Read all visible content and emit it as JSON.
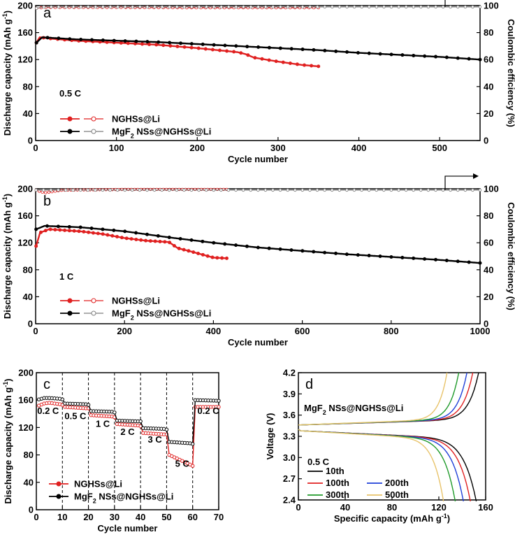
{
  "chart_data": [
    {
      "panel": "a",
      "type": "line",
      "xlabel": "Cycle number",
      "ylabel": "Discharge capacity (mAh g-1)",
      "y2label": "Coulombic efficiency (%)",
      "xlim": [
        0,
        550
      ],
      "ylim": [
        0,
        200
      ],
      "y2lim": [
        0,
        100
      ],
      "xticks": [
        0,
        100,
        200,
        300,
        400,
        500
      ],
      "yticks": [
        0,
        40,
        80,
        120,
        160,
        200
      ],
      "y2ticks": [
        0,
        20,
        40,
        60,
        80,
        100
      ],
      "rate_label": "0.5 C",
      "legend": [
        "NGHSs@Li",
        "MgF2 NSs@NGHSs@Li"
      ],
      "series": [
        {
          "name": "NGHSs@Li",
          "axis": "left",
          "color": "#e02020",
          "points": [
            [
              1,
              145
            ],
            [
              5,
              153
            ],
            [
              20,
              151
            ],
            [
              50,
              148
            ],
            [
              100,
              145
            ],
            [
              150,
              142
            ],
            [
              200,
              137
            ],
            [
              250,
              131
            ],
            [
              260,
              128
            ],
            [
              270,
              123
            ],
            [
              300,
              117
            ],
            [
              330,
              112
            ],
            [
              350,
              110
            ]
          ]
        },
        {
          "name": "NGHSs@Li",
          "axis": "right",
          "color": "#e02020",
          "points": [
            [
              1,
              98
            ],
            [
              10,
              98.6
            ],
            [
              100,
              98.6
            ],
            [
              200,
              98.4
            ],
            [
              300,
              98.4
            ],
            [
              350,
              98.4
            ]
          ]
        },
        {
          "name": "MgF2 NSs@NGHSs@Li",
          "axis": "left",
          "color": "#000000",
          "points": [
            [
              1,
              145
            ],
            [
              8,
              153
            ],
            [
              50,
              150
            ],
            [
              100,
              148
            ],
            [
              150,
              146
            ],
            [
              200,
              143
            ],
            [
              250,
              140
            ],
            [
              300,
              137
            ],
            [
              350,
              134
            ],
            [
              400,
              130
            ],
            [
              450,
              127
            ],
            [
              500,
              124
            ],
            [
              550,
              120
            ]
          ]
        },
        {
          "name": "MgF2 NSs@NGHSs@Li",
          "axis": "right",
          "color": "#7f7f7f",
          "points": [
            [
              1,
              98
            ],
            [
              10,
              99
            ],
            [
              100,
              99
            ],
            [
              200,
              99
            ],
            [
              300,
              99
            ],
            [
              400,
              99
            ],
            [
              500,
              99
            ],
            [
              550,
              99
            ]
          ]
        }
      ]
    },
    {
      "panel": "b",
      "type": "line",
      "xlabel": "Cycle number",
      "ylabel": "Discharge capacity (mAh g-1)",
      "y2label": "Coulombic efficiency (%)",
      "xlim": [
        0,
        1000
      ],
      "ylim": [
        0,
        200
      ],
      "y2lim": [
        0,
        100
      ],
      "xticks": [
        0,
        200,
        400,
        600,
        800,
        1000
      ],
      "yticks": [
        0,
        40,
        80,
        120,
        160,
        200
      ],
      "y2ticks": [
        0,
        20,
        40,
        60,
        80,
        100
      ],
      "rate_label": "1 C",
      "legend": [
        "NGHSs@Li",
        "MgF2 NSs@NGHSs@Li"
      ],
      "series": [
        {
          "name": "NGHSs@Li",
          "axis": "left",
          "color": "#e02020",
          "points": [
            [
              1,
              115
            ],
            [
              10,
              135
            ],
            [
              30,
              140
            ],
            [
              100,
              137
            ],
            [
              150,
              133
            ],
            [
              200,
              127
            ],
            [
              250,
              123
            ],
            [
              300,
              121
            ],
            [
              320,
              112
            ],
            [
              350,
              107
            ],
            [
              400,
              98
            ],
            [
              430,
              97
            ]
          ]
        },
        {
          "name": "NGHSs@Li",
          "axis": "right",
          "color": "#e02020",
          "points": [
            [
              1,
              99
            ],
            [
              20,
              97
            ],
            [
              60,
              99
            ],
            [
              200,
              99.5
            ],
            [
              300,
              99.5
            ],
            [
              430,
              99.5
            ]
          ]
        },
        {
          "name": "MgF2 NSs@NGHSs@Li",
          "axis": "right",
          "color": "#7f7f7f",
          "points": [
            [
              1,
              99
            ],
            [
              100,
              99
            ],
            [
              300,
              99
            ],
            [
              500,
              99
            ],
            [
              700,
              99
            ],
            [
              900,
              99
            ],
            [
              1000,
              99
            ]
          ]
        },
        {
          "name": "MgF2 NSs@NGHSs@Li",
          "axis": "left",
          "color": "#000000",
          "points": [
            [
              1,
              140
            ],
            [
              20,
              145
            ],
            [
              100,
              143
            ],
            [
              200,
              137
            ],
            [
              300,
              128
            ],
            [
              400,
              120
            ],
            [
              500,
              113
            ],
            [
              600,
              108
            ],
            [
              700,
              103
            ],
            [
              800,
              99
            ],
            [
              900,
              95
            ],
            [
              1000,
              90
            ]
          ]
        }
      ]
    },
    {
      "panel": "c",
      "type": "line",
      "xlabel": "Cycle number",
      "ylabel": "Discharge capacity (mAh g-1)",
      "xlim": [
        0,
        70
      ],
      "ylim": [
        0,
        200
      ],
      "xticks": [
        0,
        10,
        20,
        30,
        40,
        50,
        60,
        70
      ],
      "yticks": [
        0,
        40,
        80,
        120,
        160,
        200
      ],
      "vlines": [
        10,
        20,
        30,
        40,
        50,
        60
      ],
      "rate_labels": [
        {
          "text": "0.2 C",
          "x": 4.5,
          "y": 140
        },
        {
          "text": "0.5 C",
          "x": 15,
          "y": 132
        },
        {
          "text": "1 C",
          "x": 25.5,
          "y": 121
        },
        {
          "text": "2 C",
          "x": 35,
          "y": 109
        },
        {
          "text": "3 C",
          "x": 45.5,
          "y": 98
        },
        {
          "text": "5 C",
          "x": 56,
          "y": 63
        },
        {
          "text": "0.2 C",
          "x": 66,
          "y": 140
        }
      ],
      "legend": [
        "NGHSs@Li",
        "MgF2 NSs@NGHSs@Li"
      ],
      "series": [
        {
          "name": "NGHSs@Li",
          "color": "#e02020",
          "points": [
            [
              1,
              152
            ],
            [
              3,
              155
            ],
            [
              5,
              156
            ],
            [
              9,
              154
            ],
            [
              10,
              153
            ],
            [
              11,
              150
            ],
            [
              19,
              148
            ],
            [
              20,
              148
            ],
            [
              21,
              138
            ],
            [
              29,
              136
            ],
            [
              30,
              135
            ],
            [
              31,
              125
            ],
            [
              39,
              123
            ],
            [
              40,
              122
            ],
            [
              41,
              112
            ],
            [
              49,
              110
            ],
            [
              50,
              110
            ],
            [
              51,
              80
            ],
            [
              55,
              73
            ],
            [
              59,
              66
            ],
            [
              60,
              64
            ],
            [
              61,
              150
            ],
            [
              70,
              150
            ]
          ]
        },
        {
          "name": "MgF2 NSs@NGHSs@Li",
          "color": "#000000",
          "points": [
            [
              1,
              161
            ],
            [
              3,
              163
            ],
            [
              5,
              163
            ],
            [
              9,
              162
            ],
            [
              10,
              161
            ],
            [
              11,
              155
            ],
            [
              19,
              154
            ],
            [
              20,
              153
            ],
            [
              21,
              144
            ],
            [
              29,
              143
            ],
            [
              30,
              142
            ],
            [
              31,
              130
            ],
            [
              39,
              129
            ],
            [
              40,
              129
            ],
            [
              41,
              119
            ],
            [
              49,
              118
            ],
            [
              50,
              117
            ],
            [
              51,
              99
            ],
            [
              59,
              97
            ],
            [
              60,
              96
            ],
            [
              61,
              160
            ],
            [
              70,
              159
            ]
          ]
        }
      ]
    },
    {
      "panel": "d",
      "type": "line",
      "xlabel": "Specific capacity (mAh g-1)",
      "ylabel": "Voltage (V)",
      "xlim": [
        0,
        160
      ],
      "ylim": [
        2.4,
        4.2
      ],
      "xticks": [
        0,
        40,
        80,
        120,
        160
      ],
      "yticks": [
        2.4,
        2.7,
        3.0,
        3.3,
        3.6,
        3.9,
        4.2
      ],
      "sample_label": "MgF2 NSs@NGHSs@Li",
      "rate_label": "0.5 C",
      "legend": [
        "10th",
        "100th",
        "200th",
        "300th",
        "500th"
      ],
      "series": [
        {
          "name": "10th",
          "color": "#000000",
          "qmax": 152,
          "qcharge": 154
        },
        {
          "name": "100th",
          "color": "#e02020",
          "qmax": 147,
          "qcharge": 149
        },
        {
          "name": "200th",
          "color": "#1f3fd8",
          "qmax": 141,
          "qcharge": 144
        },
        {
          "name": "300th",
          "color": "#1f9a2a",
          "qmax": 134,
          "qcharge": 137
        },
        {
          "name": "500th",
          "color": "#e8c36a",
          "qmax": 124,
          "qcharge": 127
        }
      ]
    }
  ],
  "panel_letters": {
    "a": "a",
    "b": "b",
    "c": "c",
    "d": "d"
  }
}
